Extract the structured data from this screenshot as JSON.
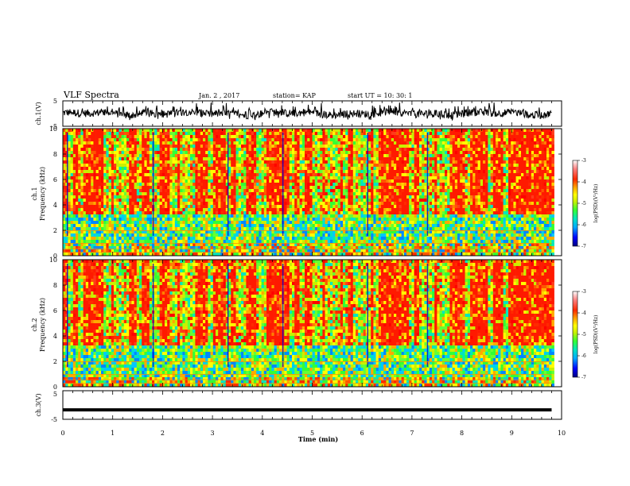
{
  "header": {
    "title": "VLF Spectra",
    "date": "Jan. 2 , 2017",
    "station": "station= KAP",
    "start": "start UT = 10: 30: 1"
  },
  "colors": {
    "colormap": [
      "#000080",
      "#0000ff",
      "#00aaff",
      "#00e5c0",
      "#33ff33",
      "#c8f000",
      "#ffff00",
      "#ffaa00",
      "#ff2a00",
      "#ff3030",
      "#ffb0b0",
      "#ffffff"
    ],
    "trace": "#000000"
  },
  "chart_data": [
    {
      "id": "ch1-waveform",
      "type": "line",
      "ylabel": "ch.1(V)",
      "ylim": [
        -5,
        5
      ],
      "yticks": [
        "5",
        "-5"
      ],
      "xlim": [
        0,
        10
      ],
      "note_series": "noisy waveform oscillating roughly between -3 and 4 V, extending to about 9.8 min"
    },
    {
      "id": "ch1-spectrogram",
      "type": "heatmap",
      "ylabel": "Frequency (kHz)",
      "channel_label": "ch.1",
      "ylim": [
        0,
        10
      ],
      "yticks": [
        "0",
        "2",
        "4",
        "6",
        "8",
        "10"
      ],
      "xlim": [
        0,
        10
      ],
      "colorbar": {
        "label": "log(PSD)(V²/Hz)",
        "range": [
          -7,
          -3
        ],
        "ticks": [
          "-3",
          "-4",
          "-5",
          "-6",
          "-7"
        ]
      },
      "bands": [
        {
          "fmin": 3.5,
          "fmax": 10,
          "level": "high"
        },
        {
          "fmin": 1.2,
          "fmax": 3.5,
          "level": "medium"
        },
        {
          "fmin": 0.0,
          "fmax": 1.2,
          "level": "mixed"
        }
      ]
    },
    {
      "id": "ch2-spectrogram",
      "type": "heatmap",
      "ylabel": "Frequency (kHz)",
      "channel_label": "ch.2",
      "ylim": [
        0,
        10
      ],
      "yticks": [
        "0",
        "2",
        "4",
        "6",
        "8",
        "10"
      ],
      "xlim": [
        0,
        10
      ],
      "colorbar": {
        "label": "log(PSD)(V²/Hz)",
        "range": [
          -7,
          -3
        ],
        "ticks": [
          "-3",
          "-4",
          "-5",
          "-6",
          "-7"
        ]
      },
      "bands": [
        {
          "fmin": 3.5,
          "fmax": 10,
          "level": "high"
        },
        {
          "fmin": 1.0,
          "fmax": 3.5,
          "level": "medium"
        },
        {
          "fmin": 0.0,
          "fmax": 1.0,
          "level": "mixed"
        }
      ]
    },
    {
      "id": "ch3-waveform",
      "type": "line",
      "ylabel": "ch.3(V)",
      "ylim": [
        -5,
        5
      ],
      "yticks": [
        "5",
        "-5"
      ],
      "xlim": [
        0,
        10
      ],
      "values_constant": -1.7
    }
  ],
  "xaxis": {
    "label": "Time (min)",
    "ticks": [
      "0",
      "1",
      "2",
      "3",
      "4",
      "5",
      "6",
      "7",
      "8",
      "9",
      "10"
    ],
    "data_end": 9.8
  }
}
